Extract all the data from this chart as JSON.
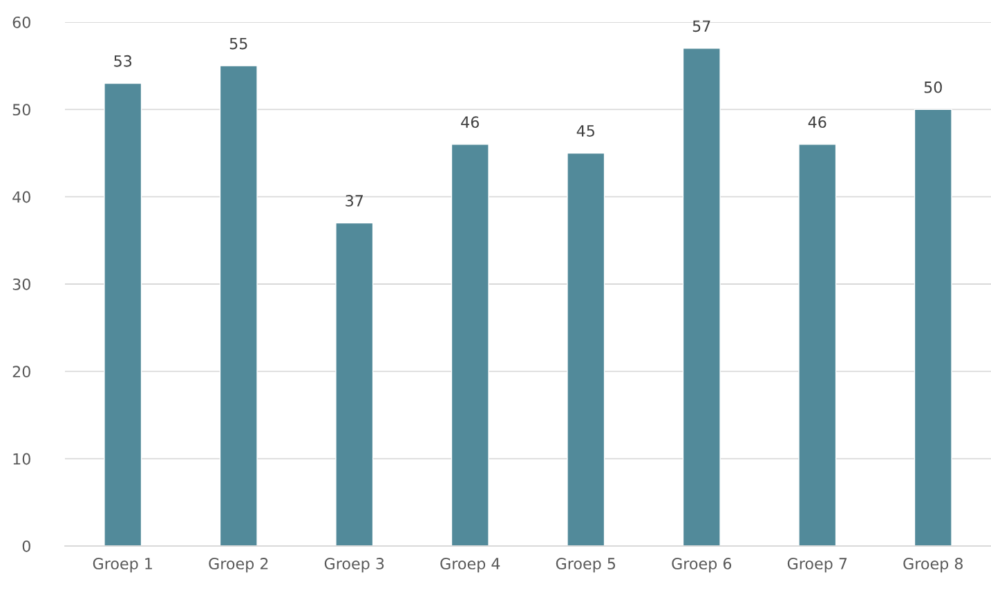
{
  "chart_data": {
    "type": "bar",
    "categories": [
      "Groep 1",
      "Groep 2",
      "Groep 3",
      "Groep 4",
      "Groep 5",
      "Groep 6",
      "Groep 7",
      "Groep 8"
    ],
    "values": [
      53,
      55,
      37,
      46,
      45,
      57,
      46,
      50
    ],
    "color": "#528a9a",
    "ylim": [
      0,
      60
    ],
    "yticks": [
      0,
      10,
      20,
      30,
      40,
      50,
      60
    ],
    "grid": "y",
    "data_labels": true,
    "legend": false
  }
}
